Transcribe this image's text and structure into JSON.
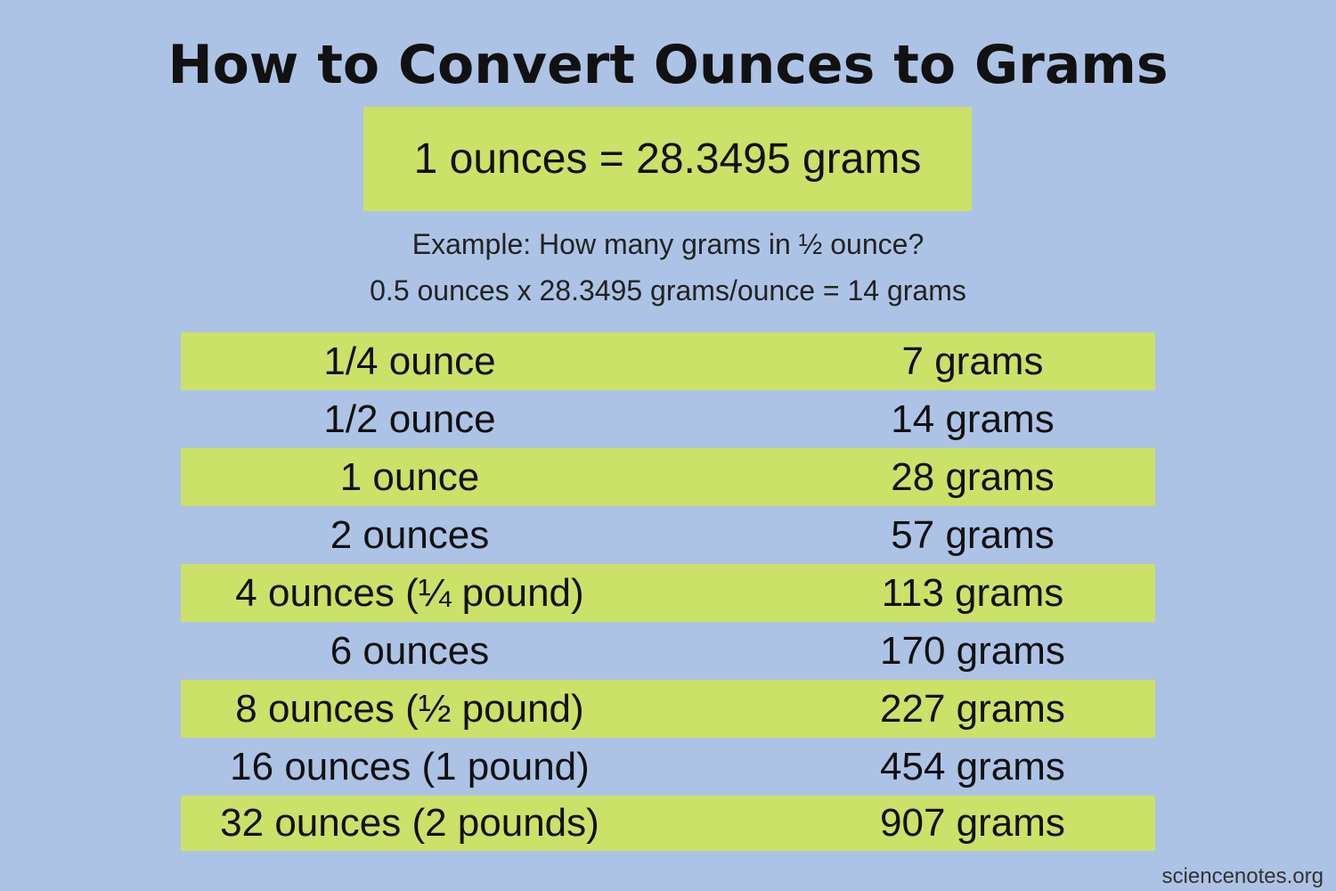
{
  "title": "How to Convert Ounces to Grams",
  "formula": "1 ounces = 28.3495 grams",
  "example": {
    "question": "Example: How many grams in ½ ounce?",
    "calculation": "0.5 ounces x 28.3495 grams/ounce = 14 grams"
  },
  "table": [
    {
      "ounces": "1/4 ounce",
      "grams": "7 grams"
    },
    {
      "ounces": "1/2 ounce",
      "grams": "14 grams"
    },
    {
      "ounces": "1 ounce",
      "grams": "28 grams"
    },
    {
      "ounces": "2 ounces",
      "grams": "57 grams"
    },
    {
      "ounces": "4 ounces (¼ pound)",
      "grams": "113 grams"
    },
    {
      "ounces": "6 ounces",
      "grams": "170 grams"
    },
    {
      "ounces": "8 ounces (½ pound)",
      "grams": "227 grams"
    },
    {
      "ounces": "16 ounces (1 pound)",
      "grams": "454 grams"
    },
    {
      "ounces": "32 ounces (2 pounds)",
      "grams": "907 grams"
    }
  ],
  "credit": "sciencenotes.org",
  "colors": {
    "background": "#adc3e5",
    "highlight": "#cbe168"
  }
}
